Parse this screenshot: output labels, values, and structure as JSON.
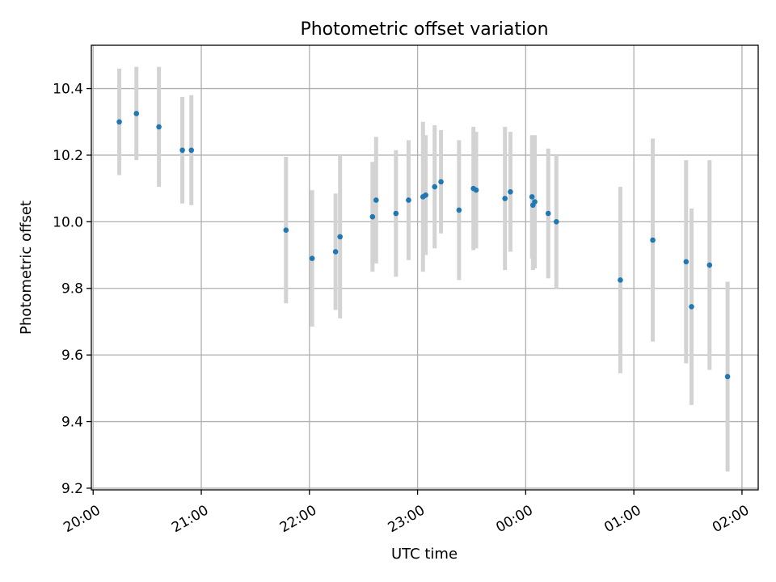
{
  "chart_data": {
    "type": "scatter",
    "title": "Photometric offset variation",
    "xlabel": "UTC time",
    "ylabel": "Photometric offset",
    "xlim": [
      "19:59",
      "02:09"
    ],
    "ylim": [
      9.195,
      10.53
    ],
    "grid": true,
    "error_bar_color": "#d3d3d3",
    "point_color": "#1f77b4",
    "x_ticks": [
      "20:00",
      "21:00",
      "22:00",
      "23:00",
      "00:00",
      "01:00",
      "02:00"
    ],
    "y_ticks": [
      "9.2",
      "9.4",
      "9.6",
      "9.8",
      "10.0",
      "10.2",
      "10.4"
    ],
    "points": [
      {
        "t": "20:14.5",
        "y": 10.3,
        "err": 0.16
      },
      {
        "t": "20:24.0",
        "y": 10.325,
        "err": 0.14
      },
      {
        "t": "20:36.5",
        "y": 10.285,
        "err": 0.18
      },
      {
        "t": "20:49.5",
        "y": 10.215,
        "err": 0.16
      },
      {
        "t": "20:54.5",
        "y": 10.215,
        "err": 0.165
      },
      {
        "t": "21:47.0",
        "y": 9.975,
        "err": 0.22
      },
      {
        "t": "22:01.5",
        "y": 9.89,
        "err": 0.205
      },
      {
        "t": "22:14.5",
        "y": 9.91,
        "err": 0.175
      },
      {
        "t": "22:17.0",
        "y": 9.955,
        "err": 0.245
      },
      {
        "t": "22:35.0",
        "y": 10.015,
        "err": 0.165
      },
      {
        "t": "22:37.0",
        "y": 10.065,
        "err": 0.19
      },
      {
        "t": "22:48.0",
        "y": 10.025,
        "err": 0.19
      },
      {
        "t": "22:55.0",
        "y": 10.065,
        "err": 0.18
      },
      {
        "t": "23:03.0",
        "y": 10.075,
        "err": 0.225
      },
      {
        "t": "23:04.5",
        "y": 10.08,
        "err": 0.18
      },
      {
        "t": "23:09.5",
        "y": 10.105,
        "err": 0.185
      },
      {
        "t": "23:13.0",
        "y": 10.12,
        "err": 0.155
      },
      {
        "t": "23:23.0",
        "y": 10.035,
        "err": 0.21
      },
      {
        "t": "23:31.0",
        "y": 10.1,
        "err": 0.185
      },
      {
        "t": "23:32.5",
        "y": 10.095,
        "err": 0.175
      },
      {
        "t": "23:48.5",
        "y": 10.07,
        "err": 0.215
      },
      {
        "t": "23:51.5",
        "y": 10.09,
        "err": 0.18
      },
      {
        "t": "00:03.5",
        "y": 10.075,
        "err": 0.185
      },
      {
        "t": "00:04.0",
        "y": 10.05,
        "err": 0.195
      },
      {
        "t": "00:05.0",
        "y": 10.06,
        "err": 0.2
      },
      {
        "t": "00:12.5",
        "y": 10.025,
        "err": 0.195
      },
      {
        "t": "00:17.0",
        "y": 10.0,
        "err": 0.2
      },
      {
        "t": "00:52.5",
        "y": 9.825,
        "err": 0.28
      },
      {
        "t": "01:10.5",
        "y": 9.945,
        "err": 0.305
      },
      {
        "t": "01:29.0",
        "y": 9.88,
        "err": 0.305
      },
      {
        "t": "01:32.0",
        "y": 9.745,
        "err": 0.295
      },
      {
        "t": "01:42.0",
        "y": 9.87,
        "err": 0.315
      },
      {
        "t": "01:52.0",
        "y": 9.535,
        "err": 0.285
      }
    ]
  }
}
